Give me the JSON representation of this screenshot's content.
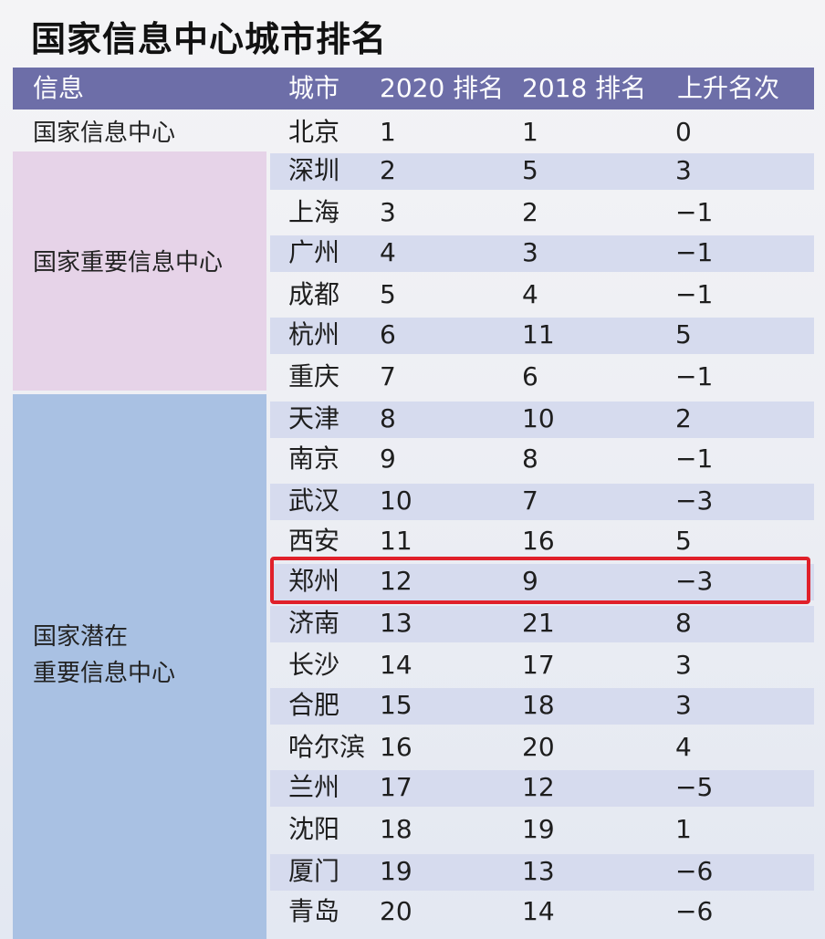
{
  "title": "国家信息中心城市排名",
  "header": {
    "col_info": "信息",
    "col_city": "城市",
    "col_rank2020": "2020 排名",
    "col_rank2018": "2018 排名",
    "col_change": "上升名次"
  },
  "groups": [
    {
      "label": "国家信息中心"
    },
    {
      "label": "国家重要信息中心"
    },
    {
      "label_line1": "国家潜在",
      "label_line2": "重要信息中心"
    }
  ],
  "rows": [
    {
      "city": "北京",
      "r2020": "1",
      "r2018": "1",
      "change": "0"
    },
    {
      "city": "深圳",
      "r2020": "2",
      "r2018": "5",
      "change": "3"
    },
    {
      "city": "上海",
      "r2020": "3",
      "r2018": "2",
      "change": "−1"
    },
    {
      "city": "广州",
      "r2020": "4",
      "r2018": "3",
      "change": "−1"
    },
    {
      "city": "成都",
      "r2020": "5",
      "r2018": "4",
      "change": "−1"
    },
    {
      "city": "杭州",
      "r2020": "6",
      "r2018": "11",
      "change": "5"
    },
    {
      "city": "重庆",
      "r2020": "7",
      "r2018": "6",
      "change": "−1"
    },
    {
      "city": "天津",
      "r2020": "8",
      "r2018": "10",
      "change": "2"
    },
    {
      "city": "南京",
      "r2020": "9",
      "r2018": "8",
      "change": "−1"
    },
    {
      "city": "武汉",
      "r2020": "10",
      "r2018": "7",
      "change": "−3"
    },
    {
      "city": "西安",
      "r2020": "11",
      "r2018": "16",
      "change": "5"
    },
    {
      "city": "郑州",
      "r2020": "12",
      "r2018": "9",
      "change": "−3"
    },
    {
      "city": "济南",
      "r2020": "13",
      "r2018": "21",
      "change": "8"
    },
    {
      "city": "长沙",
      "r2020": "14",
      "r2018": "17",
      "change": "3"
    },
    {
      "city": "合肥",
      "r2020": "15",
      "r2018": "18",
      "change": "3"
    },
    {
      "city": "哈尔滨",
      "r2020": "16",
      "r2018": "20",
      "change": "4"
    },
    {
      "city": "兰州",
      "r2020": "17",
      "r2018": "12",
      "change": "−5"
    },
    {
      "city": "沈阳",
      "r2020": "18",
      "r2018": "19",
      "change": "1"
    },
    {
      "city": "厦门",
      "r2020": "19",
      "r2018": "13",
      "change": "−6"
    },
    {
      "city": "青岛",
      "r2020": "20",
      "r2018": "14",
      "change": "−6"
    }
  ],
  "colors": {
    "header_bg": "#6d6ea8",
    "group_important_bg": "#e6d3e8",
    "group_potential_bg": "#a9c1e3",
    "row_band": "#d6dbee",
    "highlight_border": "#e0202a"
  }
}
